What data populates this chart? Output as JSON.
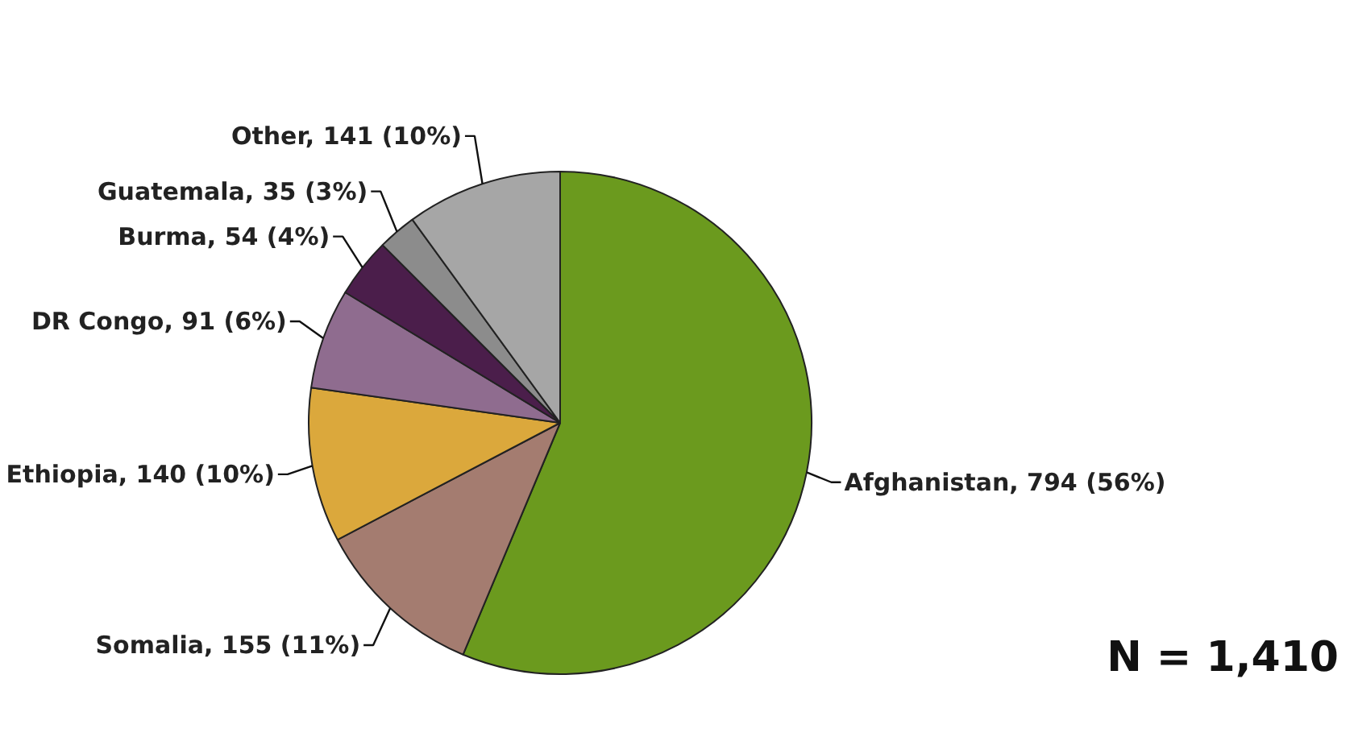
{
  "chart_data": {
    "type": "pie",
    "categories": [
      "Afghanistan",
      "Somalia",
      "Ethiopia",
      "DR Congo",
      "Burma",
      "Guatemala",
      "Other"
    ],
    "values": [
      794,
      155,
      140,
      91,
      54,
      35,
      141
    ],
    "value_labels": [
      "794 (56%)",
      "155 (11%)",
      "140 (10%)",
      "91 (6%)",
      "54 (4%)",
      "35 (3%)",
      "141 (10%)"
    ],
    "colors": [
      "#6b9a1e",
      "#a47c70",
      "#dba83c",
      "#8f6c8f",
      "#4b1e4b",
      "#8c8c8c",
      "#a6a6a6"
    ],
    "annotations": [
      "N = 1,410"
    ]
  }
}
